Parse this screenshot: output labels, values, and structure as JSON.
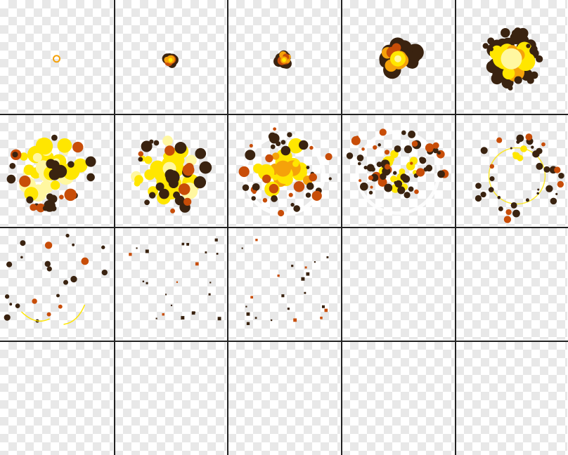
{
  "sprite_sheet": {
    "columns": 5,
    "rows": 4,
    "frame_count": 20,
    "frames": [
      {
        "index": 1,
        "stage": "ignition-spark"
      },
      {
        "index": 2,
        "stage": "small-burst"
      },
      {
        "index": 3,
        "stage": "small-burst"
      },
      {
        "index": 4,
        "stage": "fireball-growing"
      },
      {
        "index": 5,
        "stage": "fireball-full"
      },
      {
        "index": 6,
        "stage": "blast-peak"
      },
      {
        "index": 7,
        "stage": "blast-peak"
      },
      {
        "index": 8,
        "stage": "blast-expanding"
      },
      {
        "index": 9,
        "stage": "blast-dispersing"
      },
      {
        "index": 10,
        "stage": "smoke-ring"
      },
      {
        "index": 11,
        "stage": "debris-fading"
      },
      {
        "index": 12,
        "stage": "debris-sparse"
      },
      {
        "index": 13,
        "stage": "debris-sparse"
      },
      {
        "index": 14,
        "stage": "empty"
      },
      {
        "index": 15,
        "stage": "empty"
      },
      {
        "index": 16,
        "stage": "empty"
      },
      {
        "index": 17,
        "stage": "empty"
      },
      {
        "index": 18,
        "stage": "empty"
      },
      {
        "index": 19,
        "stage": "empty"
      },
      {
        "index": 20,
        "stage": "empty"
      }
    ]
  },
  "colors": {
    "grid_line": "#222222",
    "checker_light": "#ffffff",
    "checker_dark": "#e8e8e8",
    "core": "#fff7a0",
    "flame_yellow": "#ffe600",
    "flame_orange": "#f5a20a",
    "ember": "#c84d08",
    "smoke_dark": "#3a2310",
    "flash": "#ffffff"
  }
}
